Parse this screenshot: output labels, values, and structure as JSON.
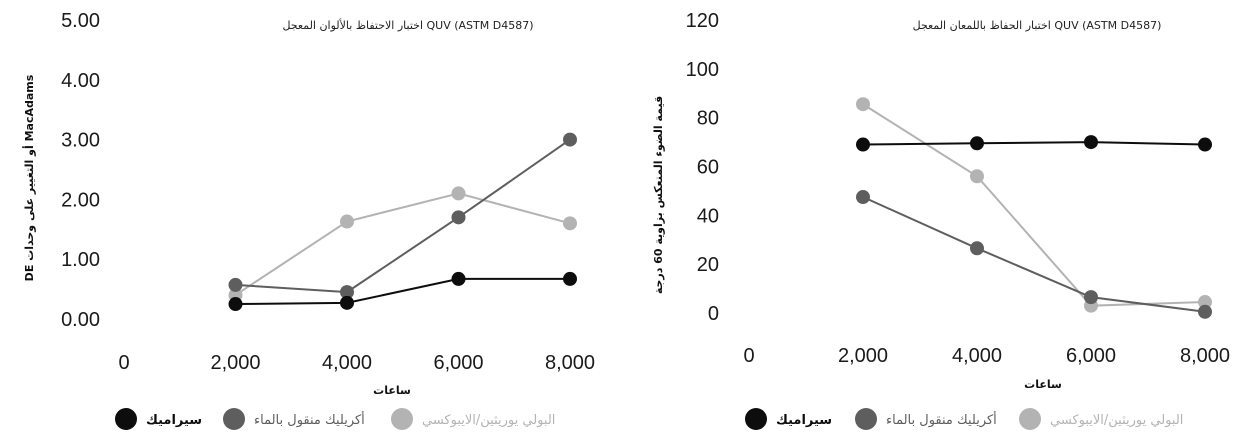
{
  "chart_data": [
    {
      "type": "line",
      "title": "اختبار الاحتفاظ بالألوان المعجل QUV (ASTM D4587)",
      "xlabel": "ساعات",
      "ylabel": "DE أو التغيير على وحدات MacAdams",
      "x_ticks": [
        "0",
        "2,000",
        "4,000",
        "6,000",
        "8,000"
      ],
      "y_ticks": [
        "0.00",
        "1.00",
        "2.00",
        "3.00",
        "4.00",
        "5.00"
      ],
      "xlim": [
        0,
        8000
      ],
      "ylim": [
        0,
        5
      ],
      "x": [
        2000,
        4000,
        6000,
        8000
      ],
      "series": [
        {
          "name": "سيراميك",
          "color": "#0d0d0d",
          "values": [
            0.25,
            0.27,
            0.67,
            0.67
          ]
        },
        {
          "name": "أكريليك منقول بالماء",
          "color": "#5e5e5e",
          "values": [
            0.57,
            0.45,
            1.7,
            3.0
          ]
        },
        {
          "name": "البولي يوريثين/الايبوكسي",
          "color": "#b3b3b3",
          "values": [
            0.4,
            1.63,
            2.1,
            1.6
          ]
        }
      ],
      "legend": "bottom",
      "grid": false
    },
    {
      "type": "line",
      "title": "اختبار الحفاظ باللمعان المعجل QUV (ASTM D4587)",
      "xlabel": "ساعات",
      "ylabel": "قيمة الضوء المنعكس بزاوية 60 درجة",
      "x_ticks": [
        "0",
        "2,000",
        "4,000",
        "6,000",
        "8,000"
      ],
      "y_ticks": [
        "0",
        "20",
        "40",
        "60",
        "80",
        "100",
        "120"
      ],
      "xlim": [
        0,
        8000
      ],
      "ylim": [
        0,
        120
      ],
      "x": [
        2000,
        4000,
        6000,
        8000
      ],
      "series": [
        {
          "name": "سيراميك",
          "color": "#0d0d0d",
          "values": [
            69,
            69.5,
            70,
            69
          ]
        },
        {
          "name": "أكريليك منقول بالماء",
          "color": "#5e5e5e",
          "values": [
            47.5,
            26.5,
            6.5,
            0.5
          ]
        },
        {
          "name": "البولي يوريثين/الايبوكسي",
          "color": "#b3b3b3",
          "values": [
            85.5,
            56,
            3,
            4.5
          ]
        }
      ],
      "legend": "bottom",
      "grid": false
    }
  ]
}
